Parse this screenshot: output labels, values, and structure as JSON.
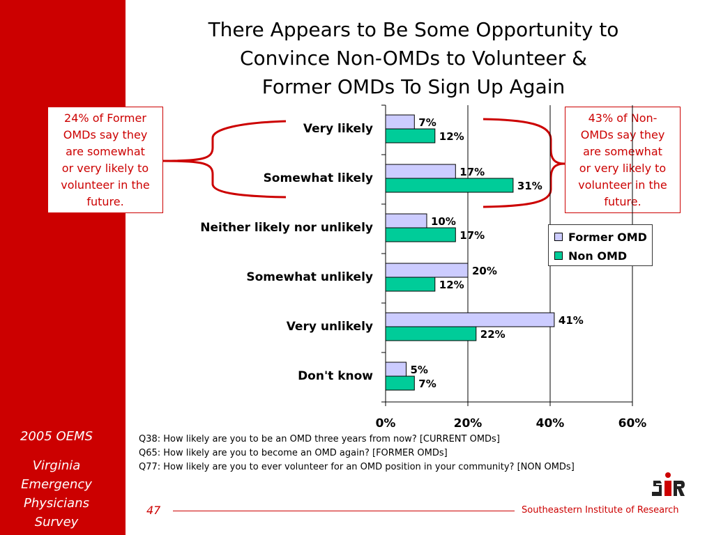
{
  "slide": {
    "title_lines": [
      "There Appears to Be Some Opportunity to",
      "Convince Non-OMDs to Volunteer &",
      "Former OMDs To Sign Up Again"
    ],
    "page_number": "47",
    "organization": "Southeastern Institute of Research"
  },
  "sidebar": {
    "top_text": "2005 OEMS",
    "bottom_lines": [
      "Virginia",
      "Emergency",
      "Physicians",
      "Survey"
    ]
  },
  "callouts": {
    "left": [
      "24% of Former",
      "OMDs say they",
      "are somewhat",
      "or very likely to",
      "volunteer in the",
      "future."
    ],
    "right": [
      "43% of Non-",
      "OMDs say they",
      "are somewhat",
      "or very likely to",
      "volunteer in the",
      "future."
    ]
  },
  "questions": [
    "Q38: How likely are you to be an OMD three years from now? [CURRENT OMDs]",
    "Q65: How likely are you to become an OMD again? [FORMER OMDs]",
    "Q77: How likely are you to ever volunteer for an OMD position in your community? [NON OMDs]"
  ],
  "colors": {
    "brand_red": "#cc0000",
    "former_omd": "#ccccff",
    "non_omd": "#00cc99"
  },
  "chart_data": {
    "type": "bar",
    "orientation": "horizontal",
    "categories": [
      "Very likely",
      "Somewhat likely",
      "Neither likely nor unlikely",
      "Somewhat unlikely",
      "Very unlikely",
      "Don't know"
    ],
    "series": [
      {
        "name": "Former OMD",
        "values": [
          7,
          17,
          10,
          20,
          41,
          5
        ],
        "labels": [
          "7%",
          "17%",
          "10%",
          "20%",
          "41%",
          "5%"
        ]
      },
      {
        "name": "Non OMD",
        "values": [
          12,
          31,
          17,
          12,
          22,
          7
        ],
        "labels": [
          "12%",
          "31%",
          "17%",
          "12%",
          "22%",
          "7%"
        ]
      }
    ],
    "xlim": [
      0,
      60
    ],
    "xticks": [
      0,
      20,
      40,
      60
    ],
    "xtick_labels": [
      "0%",
      "20%",
      "40%",
      "60%"
    ],
    "grid": true,
    "legend_position": "right"
  }
}
